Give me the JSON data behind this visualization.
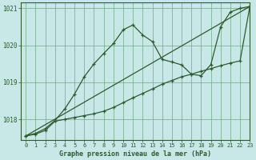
{
  "title": "Graphe pression niveau de la mer (hPa)",
  "bg_color": "#c8e8e8",
  "grid_color": "#5a9a6a",
  "line_color": "#2d5a2d",
  "xlim": [
    -0.5,
    23
  ],
  "ylim": [
    1017.45,
    1021.15
  ],
  "yticks": [
    1018,
    1019,
    1020,
    1021
  ],
  "xticks": [
    0,
    1,
    2,
    3,
    4,
    5,
    6,
    7,
    8,
    9,
    10,
    11,
    12,
    13,
    14,
    15,
    16,
    17,
    18,
    19,
    20,
    21,
    22,
    23
  ],
  "series": [
    {
      "x": [
        0,
        1,
        2,
        3,
        4,
        5,
        6,
        7,
        8,
        9,
        10,
        11,
        12,
        13,
        14,
        15,
        16,
        17,
        18,
        19,
        20,
        21,
        22,
        23
      ],
      "y": [
        1017.55,
        1017.62,
        1017.75,
        1017.97,
        1018.28,
        1018.68,
        1019.15,
        1019.5,
        1019.78,
        1020.05,
        1020.42,
        1020.55,
        1020.28,
        1020.1,
        1019.62,
        1019.55,
        1019.47,
        1019.22,
        1019.18,
        1019.48,
        1020.5,
        1020.9,
        1021.0,
        1021.05
      ]
    },
    {
      "x": [
        0,
        23
      ],
      "y": [
        1017.55,
        1021.05
      ]
    },
    {
      "x": [
        0,
        1,
        2,
        3,
        4,
        5,
        6,
        7,
        8,
        9,
        10,
        11,
        12,
        13,
        14,
        15,
        16,
        17,
        18,
        19,
        20,
        21,
        22,
        23
      ],
      "y": [
        1017.55,
        1017.6,
        1017.7,
        1017.95,
        1018.0,
        1018.05,
        1018.1,
        1018.15,
        1018.22,
        1018.32,
        1018.45,
        1018.58,
        1018.7,
        1018.82,
        1018.95,
        1019.05,
        1019.15,
        1019.22,
        1019.3,
        1019.37,
        1019.45,
        1019.52,
        1019.58,
        1021.05
      ]
    }
  ]
}
